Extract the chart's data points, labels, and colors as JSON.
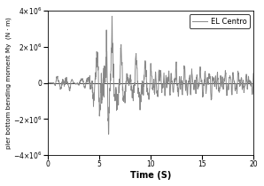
{
  "xlabel": "Time (S)",
  "ylabel": "pier bottom bending moment My  (N · m)",
  "xlim": [
    0,
    20
  ],
  "ylim": [
    -4000000.0,
    4000000.0
  ],
  "yticks": [
    -4000000.0,
    -2000000.0,
    0,
    2000000.0,
    4000000.0
  ],
  "xticks": [
    0,
    5,
    10,
    15,
    20
  ],
  "legend_label": "EL Centro",
  "line_color": "#888888",
  "line_width": 0.7,
  "background_color": "#ffffff",
  "dt": 0.02,
  "duration": 20.0
}
